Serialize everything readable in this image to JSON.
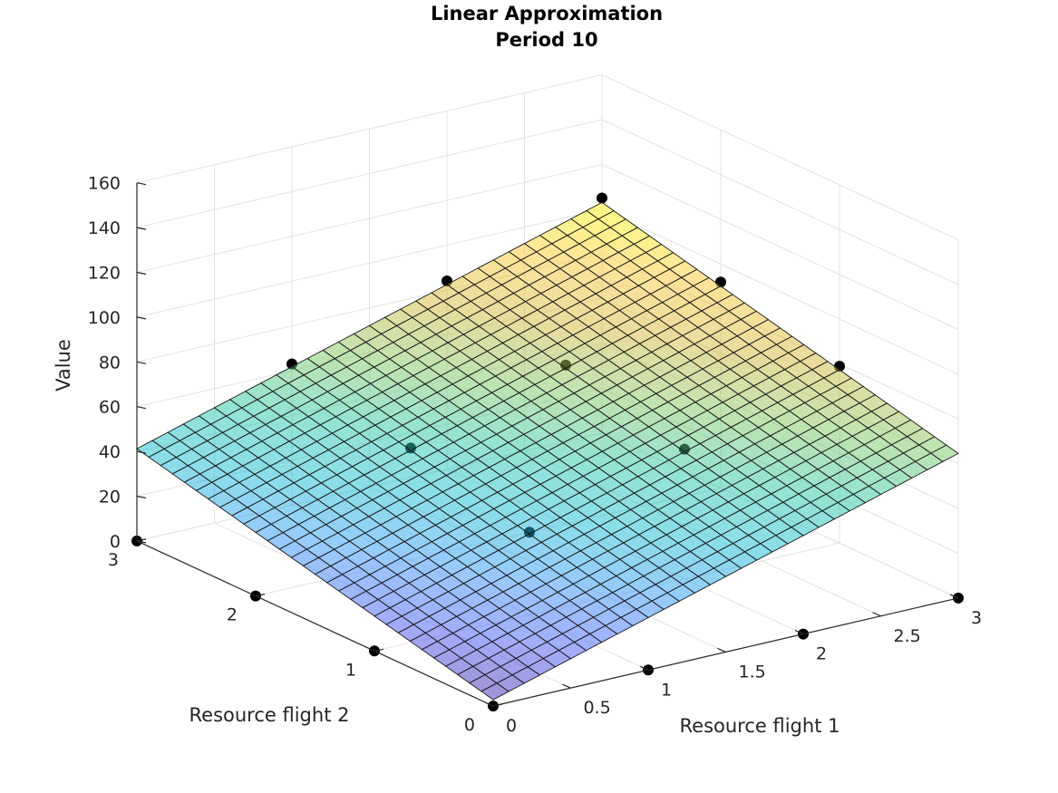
{
  "chart_data": {
    "type": "surface3d",
    "title": [
      "Linear Approximation",
      "Period 10"
    ],
    "xlabel": "Resource flight 1",
    "ylabel": "Resource flight 2",
    "zlabel": "Value",
    "xlim": [
      0,
      3
    ],
    "ylim": [
      0,
      3
    ],
    "zlim": [
      0,
      160
    ],
    "xticks": [
      "0",
      "0.5",
      "1",
      "1.5",
      "2",
      "2.5",
      "3"
    ],
    "yticks": [
      "0",
      "1",
      "2",
      "3"
    ],
    "zticks": [
      "0",
      "20",
      "40",
      "60",
      "80",
      "100",
      "120",
      "140",
      "160"
    ],
    "grid": true,
    "colormap": "parula",
    "surface": {
      "formula": "z = 20.6*x + 12.8*y + 2.8",
      "coef_x": 20.6,
      "coef_y": 12.8,
      "intercept": 2.8,
      "mesh_divisions": 30,
      "face_alpha": 0.5
    },
    "points": [
      {
        "x": 0,
        "y": 0,
        "z": 0
      },
      {
        "x": 1,
        "y": 0,
        "z": 0
      },
      {
        "x": 2,
        "y": 0,
        "z": 0
      },
      {
        "x": 3,
        "y": 0,
        "z": 0
      },
      {
        "x": 0,
        "y": 1,
        "z": 0
      },
      {
        "x": 0,
        "y": 2,
        "z": 0
      },
      {
        "x": 0,
        "y": 3,
        "z": 0
      },
      {
        "x": 1,
        "y": 1,
        "z": 37
      },
      {
        "x": 2,
        "y": 1,
        "z": 58
      },
      {
        "x": 3,
        "y": 1,
        "z": 79
      },
      {
        "x": 1,
        "y": 2,
        "z": 50
      },
      {
        "x": 2,
        "y": 2,
        "z": 71
      },
      {
        "x": 3,
        "y": 2,
        "z": 92
      },
      {
        "x": 1,
        "y": 3,
        "z": 63
      },
      {
        "x": 2,
        "y": 3,
        "z": 84
      },
      {
        "x": 3,
        "y": 3,
        "z": 105
      }
    ]
  }
}
